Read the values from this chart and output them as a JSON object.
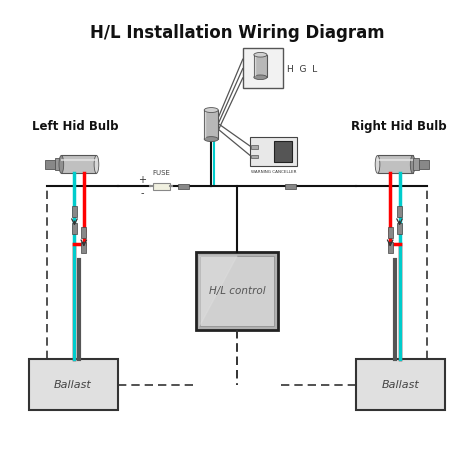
{
  "title": "H/L Installation Wiring Diagram",
  "title_fontsize": 12,
  "title_fontweight": "bold",
  "bg_color": "#ffffff",
  "fig_size": [
    4.74,
    4.74
  ],
  "dpi": 100,
  "left_label": "Left Hid Bulb",
  "right_label": "Right Hid Bulb",
  "ballast_label": "Ballast",
  "control_label": "H/L control",
  "hgl_label": "H  G  L",
  "warning_label": "WARNING CANCELLER",
  "fuse_label": "FUSE",
  "plus_label": "+",
  "minus_label": "-",
  "xlim": [
    0,
    10
  ],
  "ylim": [
    0,
    10
  ]
}
